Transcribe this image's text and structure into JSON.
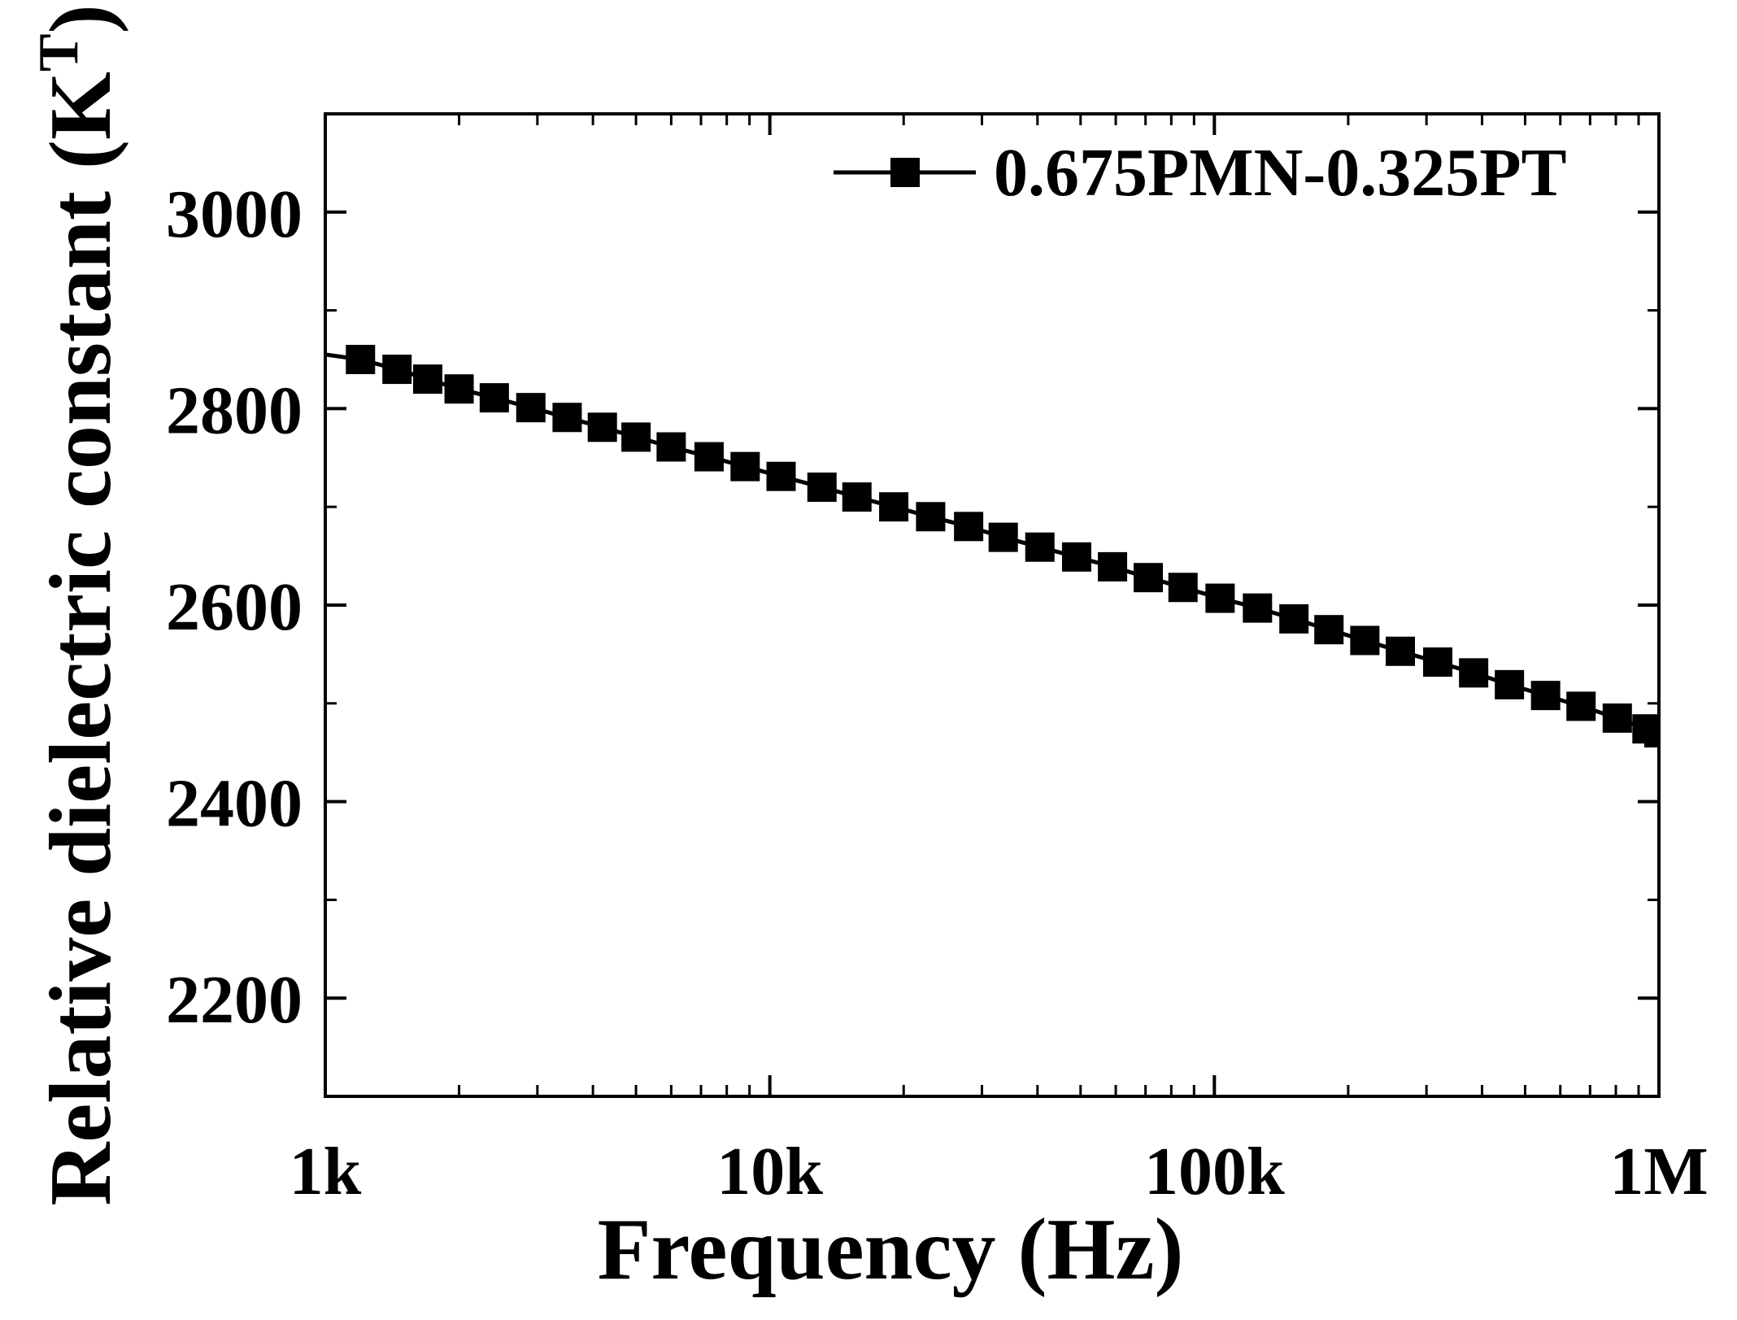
{
  "chart_data": {
    "type": "scatter",
    "xlabel": "Frequency (Hz)",
    "ylabel_main": "Relative dielectric constant (K",
    "ylabel_sup": "T",
    "ylabel_close": ")",
    "x_scale": "log",
    "xlim": [
      1000,
      1000000
    ],
    "ylim": [
      2100,
      3100
    ],
    "x_ticks": [
      {
        "value": 1000,
        "label": "1k"
      },
      {
        "value": 10000,
        "label": "10k"
      },
      {
        "value": 100000,
        "label": "100k"
      },
      {
        "value": 1000000,
        "label": "1M"
      }
    ],
    "y_ticks": [
      {
        "value": 2200,
        "label": "2200"
      },
      {
        "value": 2400,
        "label": "2400"
      },
      {
        "value": 2600,
        "label": "2600"
      },
      {
        "value": 2800,
        "label": "2800"
      },
      {
        "value": 3000,
        "label": "3000"
      }
    ],
    "grid": false,
    "legend_position": "top-right",
    "series": [
      {
        "name": "0.675PMN-0.325PT",
        "color": "#000000",
        "marker": "square",
        "points": [
          {
            "x": 900,
            "y": 2858
          },
          {
            "x": 1200,
            "y": 2850
          },
          {
            "x": 1450,
            "y": 2840
          },
          {
            "x": 1700,
            "y": 2830
          },
          {
            "x": 2000,
            "y": 2820
          },
          {
            "x": 2400,
            "y": 2811
          },
          {
            "x": 2900,
            "y": 2801
          },
          {
            "x": 3500,
            "y": 2791
          },
          {
            "x": 4200,
            "y": 2781
          },
          {
            "x": 5000,
            "y": 2771
          },
          {
            "x": 6000,
            "y": 2761
          },
          {
            "x": 7300,
            "y": 2751
          },
          {
            "x": 8800,
            "y": 2741
          },
          {
            "x": 10600,
            "y": 2731
          },
          {
            "x": 13100,
            "y": 2720
          },
          {
            "x": 15700,
            "y": 2710
          },
          {
            "x": 19000,
            "y": 2700
          },
          {
            "x": 23000,
            "y": 2690
          },
          {
            "x": 28000,
            "y": 2680
          },
          {
            "x": 33500,
            "y": 2669
          },
          {
            "x": 40500,
            "y": 2659
          },
          {
            "x": 49000,
            "y": 2649
          },
          {
            "x": 59000,
            "y": 2639
          },
          {
            "x": 71000,
            "y": 2628
          },
          {
            "x": 85000,
            "y": 2618
          },
          {
            "x": 103000,
            "y": 2607
          },
          {
            "x": 125000,
            "y": 2597
          },
          {
            "x": 151000,
            "y": 2586
          },
          {
            "x": 181000,
            "y": 2575
          },
          {
            "x": 218000,
            "y": 2564
          },
          {
            "x": 262000,
            "y": 2553
          },
          {
            "x": 318000,
            "y": 2542
          },
          {
            "x": 383000,
            "y": 2531
          },
          {
            "x": 461000,
            "y": 2519
          },
          {
            "x": 556000,
            "y": 2508
          },
          {
            "x": 668000,
            "y": 2497
          },
          {
            "x": 806000,
            "y": 2485
          },
          {
            "x": 940000,
            "y": 2474
          },
          {
            "x": 1000000,
            "y": 2470
          }
        ]
      }
    ]
  }
}
